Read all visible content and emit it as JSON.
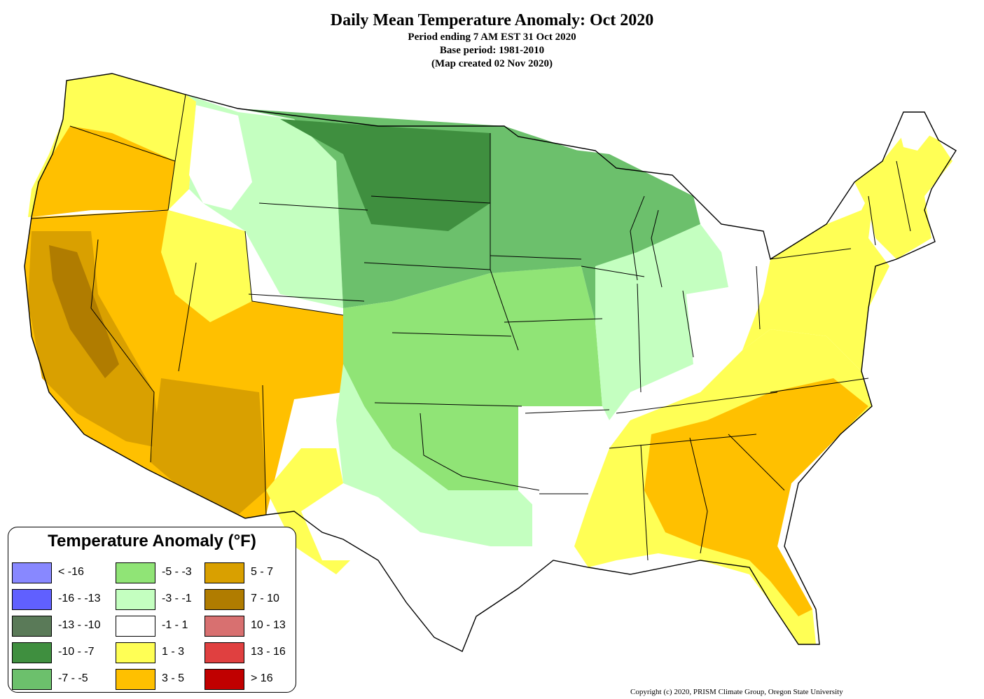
{
  "map": {
    "title": "Daily Mean Temperature Anomaly: Oct 2020",
    "subtitle_lines": [
      "Period ending 7 AM EST 31 Oct 2020",
      "Base period: 1981-2010",
      "(Map created 02 Nov 2020)"
    ],
    "copyright": "Copyright (c) 2020, PRISM Climate Group, Oregon State University"
  },
  "legend": {
    "title": "Temperature Anomaly (°F)",
    "items": [
      {
        "label": "< -16",
        "color": "#8888ff"
      },
      {
        "label": "-16 - -13",
        "color": "#6060ff"
      },
      {
        "label": "-13 - -10",
        "color": "#5a7a58"
      },
      {
        "label": "-10 - -7",
        "color": "#3f8f3f"
      },
      {
        "label": "-7 - -5",
        "color": "#6cc06c"
      },
      {
        "label": "-5 - -3",
        "color": "#90e476"
      },
      {
        "label": "-3 - -1",
        "color": "#c4ffc0"
      },
      {
        "label": "-1 - 1",
        "color": "#ffffff"
      },
      {
        "label": "1 - 3",
        "color": "#ffff55"
      },
      {
        "label": "3 - 5",
        "color": "#ffc000"
      },
      {
        "label": "5 - 7",
        "color": "#d9a000"
      },
      {
        "label": "7 - 10",
        "color": "#b07c00"
      },
      {
        "label": "10 - 13",
        "color": "#d87070"
      },
      {
        "label": "13 - 16",
        "color": "#e04040"
      },
      {
        "label": "> 16",
        "color": "#c00000"
      }
    ]
  }
}
